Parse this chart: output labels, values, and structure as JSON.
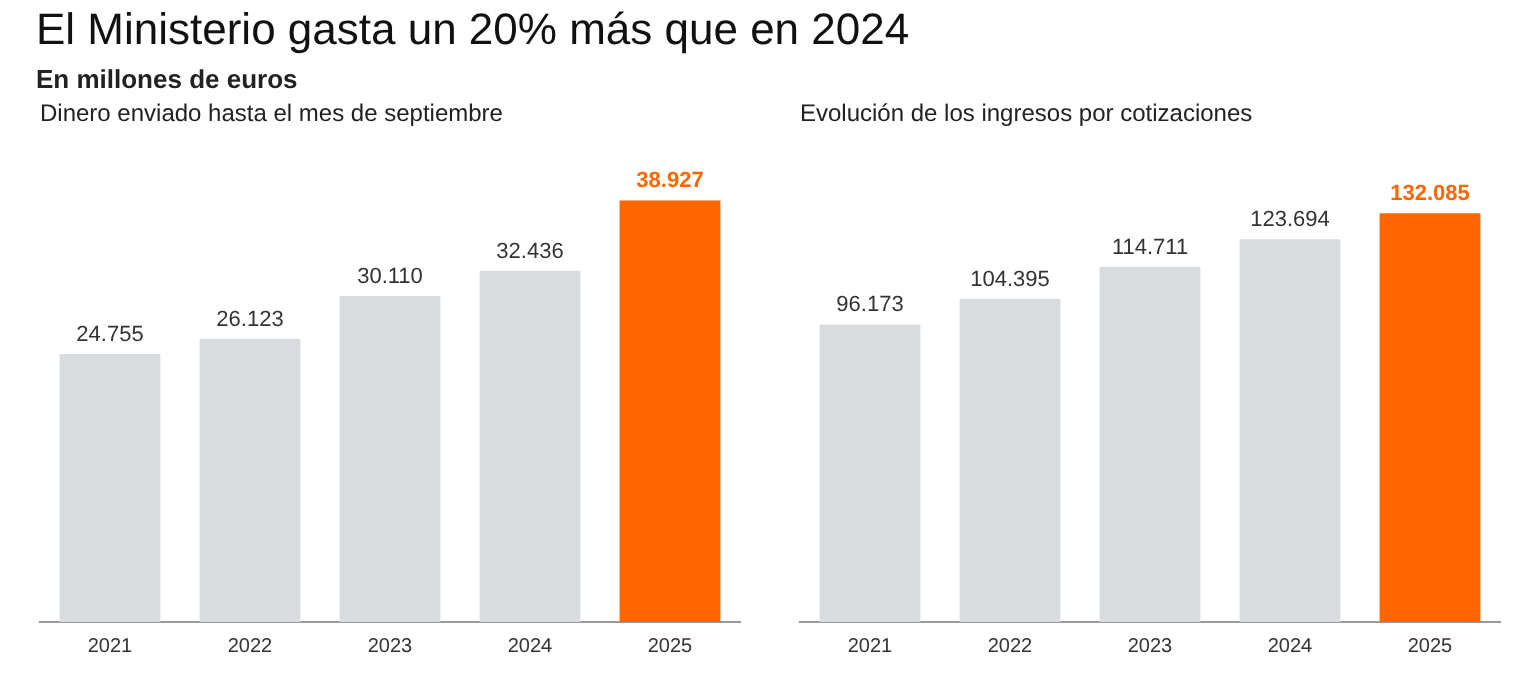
{
  "chart_data": [
    {
      "type": "other",
      "title": "El Ministerio gasta un 20% más que en 2024",
      "subtitle": "En millones de euros"
    },
    {
      "type": "bar",
      "title": "Dinero enviado hasta el mes de septiembre",
      "categories": [
        "2021",
        "2022",
        "2023",
        "2024",
        "2025"
      ],
      "values": [
        24755,
        26123,
        30110,
        32436,
        38927
      ],
      "colors": [
        "#d9dcdf",
        "#d9dcdf",
        "#d9dcdf",
        "#d9dcdf",
        "#ff6600"
      ],
      "value_labels": [
        "24.755",
        "26.123",
        "30.110",
        "32.436",
        "38.927"
      ],
      "tick_labels": "x",
      "grid": false,
      "legend": false
    },
    {
      "type": "bar",
      "title": "Evolución de los ingresos por cotizaciones",
      "categories": [
        "2021",
        "2022",
        "2023",
        "2024",
        "2025"
      ],
      "values": [
        96173,
        104395,
        114711,
        123694,
        132085
      ],
      "colors": [
        "#d9dcdf",
        "#d9dcdf",
        "#d9dcdf",
        "#d9dcdf",
        "#ff6600"
      ],
      "value_labels": [
        "96.173",
        "104.395",
        "114.711",
        "123.694",
        "132.085"
      ],
      "tick_labels": "x",
      "grid": false,
      "legend": false
    }
  ]
}
